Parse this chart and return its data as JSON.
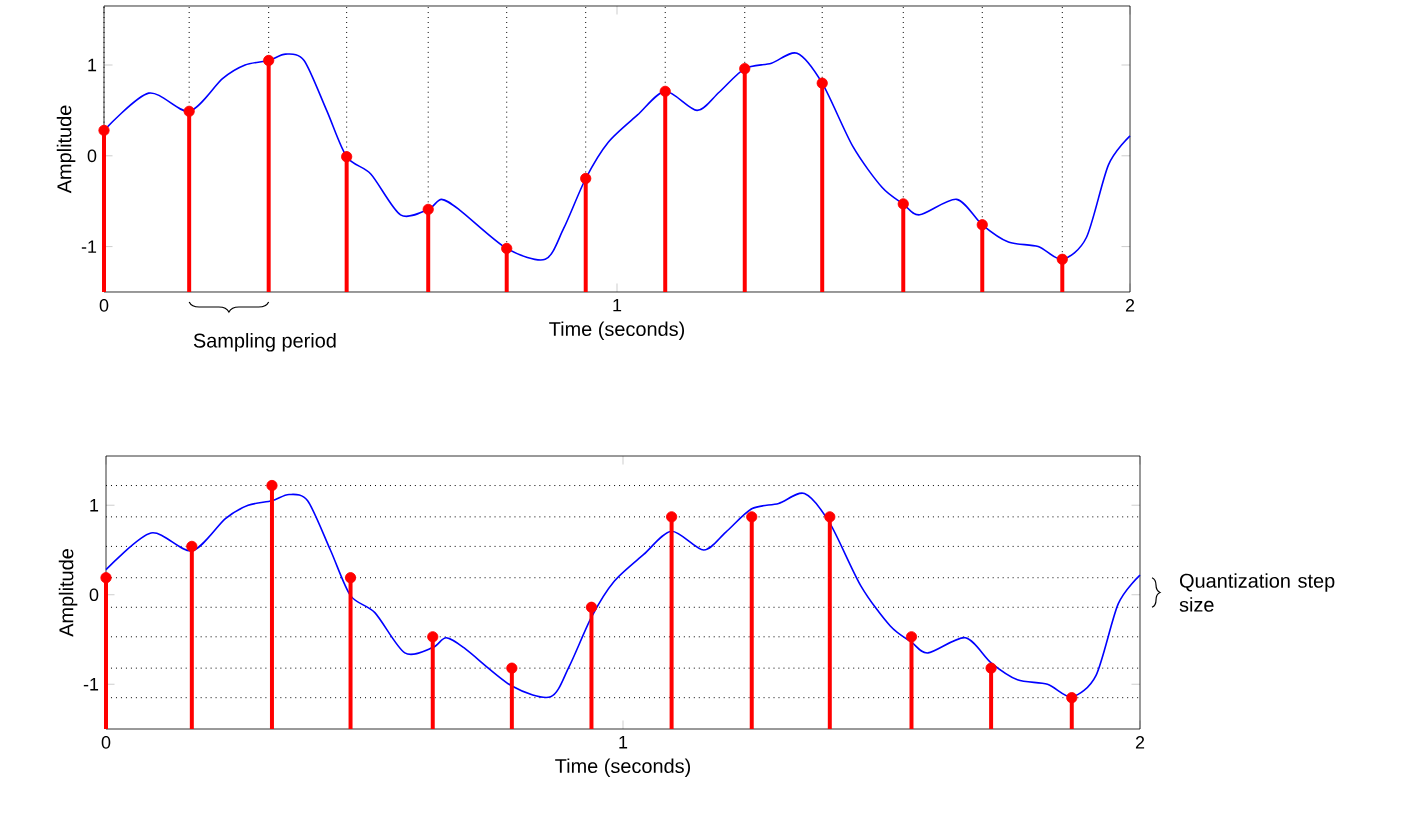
{
  "chart_data": [
    {
      "type": "line",
      "xlabel": "Time (seconds)",
      "ylabel": "Amplitude",
      "xlim": [
        0,
        2
      ],
      "ylim": [
        -1.5,
        1.65
      ],
      "xticks": [
        0,
        1,
        2
      ],
      "yticks": [
        -1,
        0,
        1
      ],
      "series": [
        {
          "type": "line",
          "color": "#0000ff",
          "marker": "none",
          "line_style": "solid",
          "x": [
            0,
            0.087,
            0.166,
            0.231,
            0.275,
            0.321,
            0.354,
            0.39,
            0.434,
            0.473,
            0.52,
            0.578,
            0.632,
            0.658,
            0.694,
            0.785,
            0.86,
            0.896,
            0.939,
            0.983,
            1.04,
            1.094,
            1.156,
            1.199,
            1.249,
            1.301,
            1.351,
            1.4,
            1.46,
            1.517,
            1.558,
            1.59,
            1.662,
            1.712,
            1.763,
            1.821,
            1.868,
            1.915,
            1.958,
            2.0
          ],
          "values": [
            0.28,
            0.69,
            0.49,
            0.85,
            1.0,
            1.05,
            1.12,
            1.05,
            0.5,
            -0.01,
            -0.2,
            -0.65,
            -0.59,
            -0.48,
            -0.6,
            -1.02,
            -1.14,
            -0.8,
            -0.25,
            0.15,
            0.45,
            0.71,
            0.5,
            0.7,
            0.96,
            1.02,
            1.13,
            0.8,
            0.1,
            -0.35,
            -0.53,
            -0.65,
            -0.48,
            -0.76,
            -0.95,
            -1.0,
            -1.14,
            -0.9,
            -0.1,
            0.22
          ]
        },
        {
          "type": "lollipop",
          "color": "#ff0000",
          "marker": "circle",
          "x": [
            0,
            0.166,
            0.321,
            0.473,
            0.632,
            0.785,
            0.939,
            1.094,
            1.249,
            1.4,
            1.558,
            1.712,
            1.868
          ],
          "values": [
            0.28,
            0.49,
            1.05,
            -0.01,
            -0.59,
            -1.02,
            -0.25,
            0.71,
            0.96,
            0.8,
            -0.53,
            -0.76,
            -1.14
          ],
          "errors": [
            [
              -1.5,
              0.28
            ],
            [
              -1.5,
              0.49
            ],
            [
              -1.5,
              1.05
            ],
            [
              -1.5,
              -0.01
            ],
            [
              -1.5,
              -0.59
            ],
            [
              -1.5,
              -1.02
            ],
            [
              -1.5,
              -0.25
            ],
            [
              -1.5,
              0.71
            ],
            [
              -1.5,
              0.96
            ],
            [
              -1.5,
              0.8
            ],
            [
              -1.5,
              -0.53
            ],
            [
              -1.5,
              -0.76
            ],
            [
              -1.5,
              -1.14
            ]
          ]
        }
      ],
      "ref_lines": [
        {
          "axis": "x",
          "value": 0,
          "color": "#000000",
          "line_style": "dotted"
        },
        {
          "axis": "x",
          "value": 0.166,
          "color": "#000000",
          "line_style": "dotted"
        },
        {
          "axis": "x",
          "value": 0.321,
          "color": "#000000",
          "line_style": "dotted"
        },
        {
          "axis": "x",
          "value": 0.473,
          "color": "#000000",
          "line_style": "dotted"
        },
        {
          "axis": "x",
          "value": 0.632,
          "color": "#000000",
          "line_style": "dotted"
        },
        {
          "axis": "x",
          "value": 0.785,
          "color": "#000000",
          "line_style": "dotted"
        },
        {
          "axis": "x",
          "value": 0.939,
          "color": "#000000",
          "line_style": "dotted"
        },
        {
          "axis": "x",
          "value": 1.094,
          "color": "#000000",
          "line_style": "dotted"
        },
        {
          "axis": "x",
          "value": 1.249,
          "color": "#000000",
          "line_style": "dotted"
        },
        {
          "axis": "x",
          "value": 1.4,
          "color": "#000000",
          "line_style": "dotted"
        },
        {
          "axis": "x",
          "value": 1.558,
          "color": "#000000",
          "line_style": "dotted"
        },
        {
          "axis": "x",
          "value": 1.712,
          "color": "#000000",
          "line_style": "dotted"
        },
        {
          "axis": "x",
          "value": 1.868,
          "color": "#000000",
          "line_style": "dotted"
        }
      ],
      "annotations": [
        "Sampling period"
      ]
    },
    {
      "type": "line",
      "xlabel": "Time (seconds)",
      "ylabel": "Amplitude",
      "xlim": [
        0,
        2
      ],
      "ylim": [
        -1.5,
        1.55
      ],
      "xticks": [
        0,
        1,
        2
      ],
      "yticks": [
        -1,
        0,
        1
      ],
      "series": [
        {
          "type": "line",
          "color": "#0000ff",
          "marker": "none",
          "line_style": "solid",
          "x": [
            0,
            0.087,
            0.166,
            0.231,
            0.275,
            0.321,
            0.354,
            0.39,
            0.434,
            0.473,
            0.52,
            0.578,
            0.632,
            0.658,
            0.694,
            0.785,
            0.86,
            0.896,
            0.939,
            0.983,
            1.04,
            1.094,
            1.156,
            1.199,
            1.249,
            1.301,
            1.351,
            1.4,
            1.46,
            1.517,
            1.558,
            1.59,
            1.662,
            1.712,
            1.763,
            1.821,
            1.868,
            1.915,
            1.958,
            2.0
          ],
          "values": [
            0.28,
            0.69,
            0.49,
            0.85,
            1.0,
            1.05,
            1.12,
            1.05,
            0.5,
            -0.01,
            -0.2,
            -0.65,
            -0.59,
            -0.48,
            -0.6,
            -1.02,
            -1.14,
            -0.8,
            -0.25,
            0.15,
            0.45,
            0.71,
            0.5,
            0.7,
            0.96,
            1.02,
            1.13,
            0.8,
            0.1,
            -0.35,
            -0.53,
            -0.65,
            -0.48,
            -0.76,
            -0.95,
            -1.0,
            -1.14,
            -0.9,
            -0.1,
            0.22
          ]
        },
        {
          "type": "lollipop",
          "color": "#ff0000",
          "marker": "circle",
          "x": [
            0,
            0.166,
            0.321,
            0.473,
            0.632,
            0.785,
            0.939,
            1.094,
            1.249,
            1.4,
            1.558,
            1.712,
            1.868
          ],
          "values": [
            0.19,
            0.54,
            1.22,
            0.19,
            -0.47,
            -0.82,
            -0.14,
            0.87,
            0.87,
            0.87,
            -0.47,
            -0.82,
            -1.15
          ],
          "errors": [
            [
              -1.5,
              0.19
            ],
            [
              -1.5,
              0.54
            ],
            [
              -1.5,
              1.22
            ],
            [
              -1.5,
              0.19
            ],
            [
              -1.5,
              -0.47
            ],
            [
              -1.5,
              -0.82
            ],
            [
              -1.5,
              -0.14
            ],
            [
              -1.5,
              0.87
            ],
            [
              -1.5,
              0.87
            ],
            [
              -1.5,
              0.87
            ],
            [
              -1.5,
              -0.47
            ],
            [
              -1.5,
              -0.82
            ],
            [
              -1.5,
              -1.15
            ]
          ]
        }
      ],
      "ref_lines": [
        {
          "axis": "y",
          "value": 1.22,
          "color": "#000000",
          "line_style": "dotted"
        },
        {
          "axis": "y",
          "value": 0.87,
          "color": "#000000",
          "line_style": "dotted"
        },
        {
          "axis": "y",
          "value": 0.54,
          "color": "#000000",
          "line_style": "dotted"
        },
        {
          "axis": "y",
          "value": 0.19,
          "color": "#000000",
          "line_style": "dotted"
        },
        {
          "axis": "y",
          "value": -0.14,
          "color": "#000000",
          "line_style": "dotted"
        },
        {
          "axis": "y",
          "value": -0.47,
          "color": "#000000",
          "line_style": "dotted"
        },
        {
          "axis": "y",
          "value": -0.82,
          "color": "#000000",
          "line_style": "dotted"
        },
        {
          "axis": "y",
          "value": -1.15,
          "color": "#000000",
          "line_style": "dotted"
        }
      ],
      "annotations": [
        "Quantization step size"
      ]
    }
  ]
}
